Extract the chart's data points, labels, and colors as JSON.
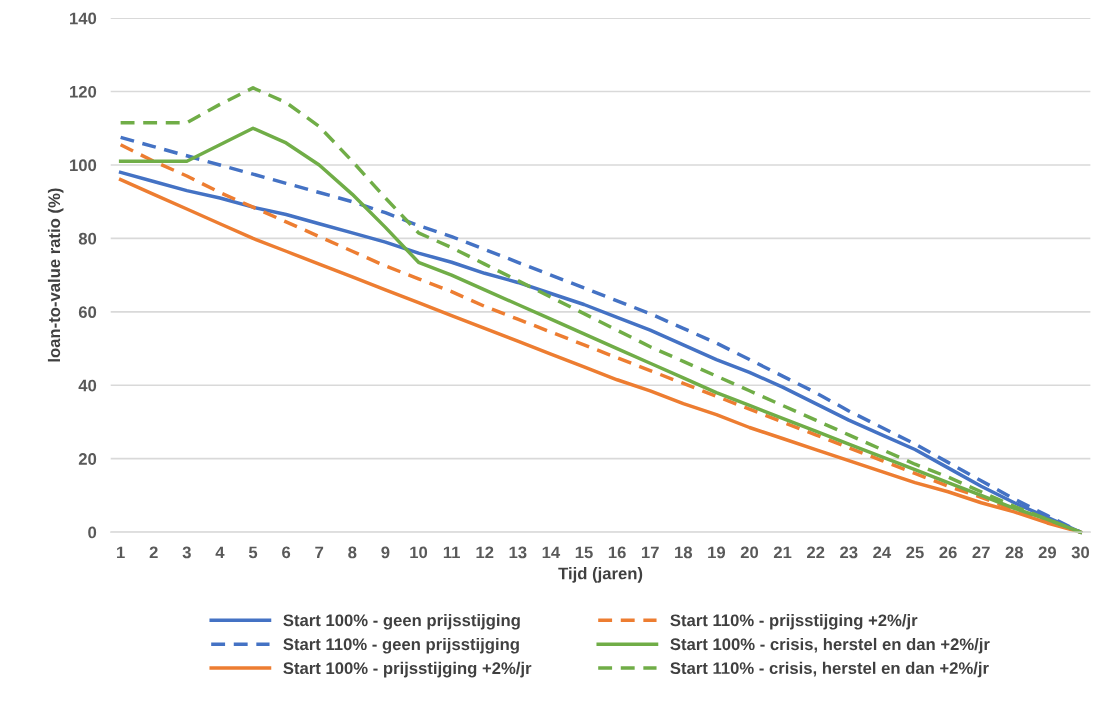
{
  "chart_data": {
    "type": "line",
    "xlabel": "Tijd (jaren)",
    "ylabel": "loan-to-value ratio (%)",
    "categories": [
      "1",
      "2",
      "3",
      "4",
      "5",
      "6",
      "7",
      "8",
      "9",
      "10",
      "11",
      "12",
      "13",
      "14",
      "15",
      "16",
      "17",
      "18",
      "19",
      "20",
      "21",
      "22",
      "23",
      "24",
      "25",
      "26",
      "27",
      "28",
      "29",
      "30"
    ],
    "ylim": [
      0,
      140
    ],
    "yticks": [
      0,
      20,
      40,
      60,
      80,
      100,
      120,
      140
    ],
    "grid": "y",
    "legend": "bottom",
    "marker": "none",
    "series": [
      {
        "name": "Start 100% - geen prijsstijging",
        "color": "#4472c4",
        "line_style": "solid",
        "values": [
          98,
          95.5,
          93,
          91,
          88.5,
          86.5,
          84,
          81.5,
          79,
          76,
          73.5,
          70.5,
          68,
          65,
          62,
          58.5,
          55,
          51,
          47,
          43.5,
          39.5,
          35,
          30.5,
          26.5,
          22.5,
          17.5,
          12.5,
          8,
          4,
          0
        ]
      },
      {
        "name": "Start 110% - geen prijsstijging",
        "color": "#4472c4",
        "line_style": "dashed",
        "values": [
          107.5,
          105,
          102.5,
          100,
          97.5,
          95,
          92.5,
          90,
          87,
          83.5,
          80.5,
          77,
          73.5,
          70,
          66.5,
          63,
          59.5,
          55.5,
          51.5,
          47,
          42.5,
          38,
          33,
          28.5,
          24,
          19,
          14,
          9,
          4.5,
          0
        ]
      },
      {
        "name": "Start 100% - prijsstijging +2%/jr",
        "color": "#ed7d31",
        "line_style": "solid",
        "values": [
          96,
          92,
          88,
          84,
          80,
          76.5,
          73,
          69.5,
          66,
          62.5,
          59,
          55.5,
          52,
          48.5,
          45,
          41.5,
          38.5,
          35,
          32,
          28.5,
          25.5,
          22.5,
          19.5,
          16.5,
          13.5,
          11,
          8,
          5.5,
          2.5,
          0
        ]
      },
      {
        "name": "Start 110% - prijsstijging +2%/jr",
        "color": "#ed7d31",
        "line_style": "dashed",
        "values": [
          105.5,
          101,
          97,
          92.5,
          88.5,
          84.5,
          80.5,
          76.5,
          72.5,
          69,
          65.5,
          61.5,
          58,
          54.5,
          51,
          47.5,
          44,
          40.5,
          37,
          33.5,
          30,
          26.5,
          23,
          19.5,
          16,
          12.5,
          9.5,
          6,
          3,
          0
        ]
      },
      {
        "name": "Start 100% - crisis, herstel en dan +2%/jr",
        "color": "#70ad47",
        "line_style": "solid",
        "values": [
          101,
          101,
          101,
          105.5,
          110,
          106,
          100,
          92,
          83,
          73.5,
          70,
          66,
          62,
          58,
          54,
          50,
          46,
          42,
          38,
          34.5,
          31,
          27.5,
          24,
          20.5,
          17,
          13.5,
          10,
          6.5,
          3.5,
          0
        ]
      },
      {
        "name": "Start 110% - crisis, herstel en dan +2%/jr",
        "color": "#70ad47",
        "line_style": "dashed",
        "values": [
          111.5,
          111.5,
          111.5,
          116.5,
          121,
          117,
          110.5,
          101,
          91,
          81.5,
          77.5,
          73,
          68.5,
          64,
          59.5,
          55,
          50.5,
          46.5,
          42.5,
          38.5,
          34.5,
          30.5,
          26.5,
          22.5,
          18.5,
          15,
          11,
          7,
          3.5,
          0
        ]
      }
    ]
  }
}
